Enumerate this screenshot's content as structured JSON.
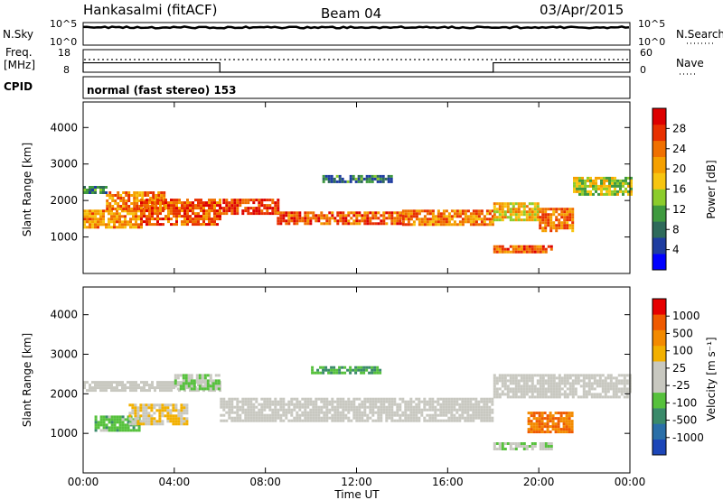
{
  "header": {
    "station": "Hankasalmi (fitACF)",
    "beam": "Beam 04",
    "date": "03/Apr/2015"
  },
  "panels": {
    "nsky_label": "N.Sky",
    "nsky_ticks": [
      "10^5",
      "10^0"
    ],
    "nsearch_label": "N.Search",
    "nsearch_ticks": [
      "10^5",
      "10^0"
    ],
    "freq_label_top": "Freq.",
    "freq_label_bottom": "[MHz]",
    "freq_ticks": [
      "18",
      "8"
    ],
    "nave_label": "Nave",
    "nave_ticks": [
      "60",
      "0"
    ],
    "cpid_label": "CPID",
    "cpid_text": "normal (fast stereo) 153"
  },
  "colorbars": {
    "power": {
      "label": "Power [dB]",
      "ticks": [
        "28",
        "24",
        "20",
        "16",
        "12",
        "8",
        "4"
      ],
      "colors": [
        "#0000ff",
        "#1e3ca0",
        "#2e6a5a",
        "#3f9a3f",
        "#8ccc2c",
        "#f7c510",
        "#f5a000",
        "#f07000",
        "#e83000",
        "#dd0000"
      ]
    },
    "velocity": {
      "label": "Velocity [m s⁻¹]",
      "ticks": [
        "1000",
        "500",
        "100",
        "25",
        "-25",
        "-100",
        "-500",
        "-1000"
      ],
      "colors": [
        "#1c46b8",
        "#2a6fa8",
        "#3a8a6a",
        "#56c13c",
        "#c8c8c0",
        "#c8c8c0",
        "#f2b000",
        "#f38a00",
        "#ef5a00",
        "#e60000"
      ]
    }
  },
  "chart_data": {
    "type": "heatmap",
    "xlabel": "Time UT",
    "x_ticks": [
      "00:00",
      "04:00",
      "08:00",
      "12:00",
      "16:00",
      "20:00",
      "00:00"
    ],
    "xlim_hours": [
      0,
      24
    ],
    "ylabel": "Slant Range [km]",
    "ylim_km": [
      0,
      4700
    ],
    "y_ticks": [
      1000,
      2000,
      3000,
      4000
    ],
    "series": [
      {
        "name": "Power",
        "unit": "dB",
        "clim": [
          0,
          30
        ],
        "description_bands": [
          {
            "t_start": 0.0,
            "t_end": 1.0,
            "range_center_km": 2300,
            "range_width_km": 200,
            "value": 8
          },
          {
            "t_start": 0.0,
            "t_end": 2.5,
            "range_center_km": 1500,
            "range_width_km": 500,
            "value": 20
          },
          {
            "t_start": 1.0,
            "t_end": 3.5,
            "range_center_km": 2000,
            "range_width_km": 500,
            "value": 22
          },
          {
            "t_start": 2.5,
            "t_end": 6.0,
            "range_center_km": 1700,
            "range_width_km": 700,
            "value": 24
          },
          {
            "t_start": 6.0,
            "t_end": 8.5,
            "range_center_km": 1850,
            "range_width_km": 400,
            "value": 26
          },
          {
            "t_start": 8.5,
            "t_end": 14.0,
            "range_center_km": 1550,
            "range_width_km": 300,
            "value": 24
          },
          {
            "t_start": 14.0,
            "t_end": 18.0,
            "range_center_km": 1550,
            "range_width_km": 400,
            "value": 22
          },
          {
            "t_start": 18.0,
            "t_end": 20.0,
            "range_center_km": 1700,
            "range_width_km": 500,
            "value": 18
          },
          {
            "t_start": 20.0,
            "t_end": 21.5,
            "range_center_km": 1500,
            "range_width_km": 600,
            "value": 22
          },
          {
            "t_start": 21.5,
            "t_end": 24.0,
            "range_center_km": 2400,
            "range_width_km": 500,
            "value": 14
          },
          {
            "t_start": 18.0,
            "t_end": 20.5,
            "range_center_km": 700,
            "range_width_km": 150,
            "value": 24
          },
          {
            "t_start": 10.5,
            "t_end": 13.5,
            "range_center_km": 2600,
            "range_width_km": 200,
            "value": 8
          }
        ]
      },
      {
        "name": "Velocity",
        "unit": "m/s",
        "clim": [
          -1000,
          1000
        ],
        "description_bands": [
          {
            "t_start": 0.0,
            "t_end": 6.0,
            "range_center_km": 2200,
            "range_width_km": 250,
            "value": 0
          },
          {
            "t_start": 0.5,
            "t_end": 2.5,
            "range_center_km": 1250,
            "range_width_km": 400,
            "value": -300
          },
          {
            "t_start": 2.0,
            "t_end": 4.5,
            "range_center_km": 1500,
            "range_width_km": 500,
            "value": 200
          },
          {
            "t_start": 4.0,
            "t_end": 6.0,
            "range_center_km": 2300,
            "range_width_km": 400,
            "value": -200
          },
          {
            "t_start": 6.0,
            "t_end": 18.0,
            "range_center_km": 1600,
            "range_width_km": 600,
            "value": 0
          },
          {
            "t_start": 10.0,
            "t_end": 13.0,
            "range_center_km": 2600,
            "range_width_km": 200,
            "value": -400
          },
          {
            "t_start": 18.0,
            "t_end": 24.0,
            "range_center_km": 2200,
            "range_width_km": 600,
            "value": 0
          },
          {
            "t_start": 19.5,
            "t_end": 21.5,
            "range_center_km": 1300,
            "range_width_km": 500,
            "value": 600
          },
          {
            "t_start": 18.0,
            "t_end": 20.5,
            "range_center_km": 700,
            "range_width_km": 150,
            "value": -150
          }
        ]
      }
    ],
    "nsky_level": 8500,
    "nsearch_level": 8500,
    "freq_mhz_level": 12,
    "nave_level": 25
  }
}
